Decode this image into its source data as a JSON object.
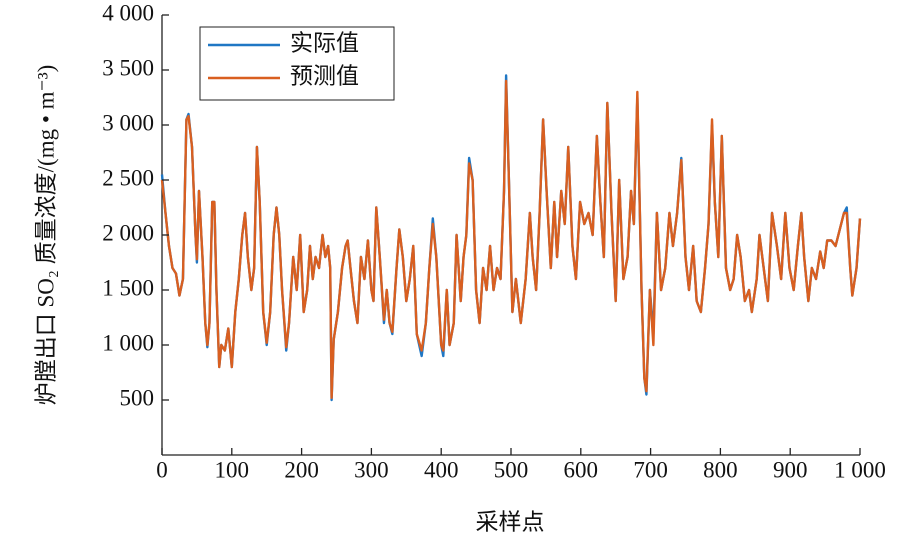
{
  "chart_data": {
    "type": "line",
    "x_label": "采样点",
    "y_label": "炉膛出口 SO₂ 质量浓度/(mg • m⁻³)",
    "x": [
      0,
      5,
      10,
      15,
      20,
      25,
      30,
      35,
      38,
      43,
      48,
      50,
      53,
      58,
      62,
      65,
      68,
      72,
      75,
      78,
      82,
      85,
      90,
      95,
      100,
      105,
      110,
      115,
      119,
      123,
      128,
      132,
      136,
      140,
      145,
      150,
      155,
      160,
      164,
      168,
      172,
      178,
      182,
      188,
      193,
      198,
      203,
      208,
      212,
      216,
      220,
      225,
      230,
      234,
      238,
      241,
      243,
      246,
      252,
      258,
      263,
      266,
      270,
      275,
      280,
      285,
      290,
      295,
      300,
      303,
      307,
      312,
      318,
      322,
      326,
      330,
      336,
      340,
      345,
      350,
      355,
      360,
      365,
      372,
      378,
      383,
      388,
      393,
      400,
      403,
      408,
      412,
      418,
      422,
      428,
      432,
      436,
      440,
      445,
      450,
      455,
      460,
      465,
      470,
      475,
      480,
      485,
      490,
      493,
      497,
      502,
      507,
      514,
      521,
      527,
      531,
      536,
      541,
      546,
      551,
      557,
      562,
      566,
      572,
      577,
      582,
      588,
      593,
      599,
      605,
      611,
      617,
      623,
      628,
      633,
      638,
      644,
      650,
      655,
      661,
      667,
      672,
      676,
      681,
      687,
      691,
      694,
      699,
      704,
      709,
      715,
      721,
      727,
      732,
      738,
      744,
      750,
      755,
      761,
      766,
      772,
      778,
      783,
      788,
      792,
      797,
      802,
      808,
      814,
      819,
      824,
      829,
      835,
      841,
      845,
      852,
      856,
      862,
      868,
      874,
      881,
      887,
      893,
      899,
      905,
      911,
      916,
      920,
      926,
      931,
      937,
      943,
      948,
      953,
      959,
      965,
      971,
      977,
      981,
      986,
      989,
      995,
      1000
    ],
    "series": [
      {
        "name": "实际值",
        "color": "#1f77c4",
        "values": [
          2550,
          2200,
          1900,
          1700,
          1650,
          1450,
          1600,
          3050,
          3100,
          2800,
          2000,
          1750,
          2400,
          1800,
          1200,
          980,
          1200,
          2300,
          2300,
          1500,
          800,
          1000,
          950,
          1150,
          800,
          1300,
          1600,
          2000,
          2200,
          1800,
          1500,
          1700,
          2800,
          2300,
          1300,
          1000,
          1300,
          2000,
          2250,
          2000,
          1500,
          950,
          1200,
          1800,
          1500,
          2000,
          1300,
          1500,
          1900,
          1600,
          1800,
          1700,
          2000,
          1800,
          1900,
          1700,
          500,
          1050,
          1300,
          1700,
          1900,
          1950,
          1700,
          1400,
          1200,
          1800,
          1600,
          1950,
          1500,
          1400,
          2250,
          1800,
          1200,
          1500,
          1200,
          1100,
          1700,
          2050,
          1800,
          1400,
          1600,
          1900,
          1100,
          900,
          1200,
          1700,
          2150,
          1800,
          1000,
          900,
          1500,
          1000,
          1200,
          2000,
          1400,
          1800,
          2000,
          2700,
          2500,
          1500,
          1200,
          1700,
          1500,
          1900,
          1500,
          1700,
          1600,
          2400,
          3450,
          2500,
          1300,
          1600,
          1200,
          1600,
          2200,
          1800,
          1500,
          2200,
          3050,
          2400,
          1700,
          2300,
          1800,
          2400,
          2100,
          2800,
          1900,
          1600,
          2300,
          2100,
          2200,
          2000,
          2900,
          2300,
          1800,
          3200,
          2200,
          1400,
          2500,
          1600,
          1800,
          2400,
          2100,
          3250,
          1500,
          700,
          550,
          1500,
          1100,
          2200,
          1500,
          1700,
          2200,
          1900,
          2200,
          2700,
          1800,
          1500,
          1900,
          1400,
          1300,
          1700,
          2100,
          3000,
          2300,
          1800,
          2900,
          1700,
          1500,
          1600,
          2000,
          1800,
          1400,
          1500,
          1300,
          1600,
          2000,
          1700,
          1400,
          2200,
          1900,
          1600,
          2200,
          1700,
          1500,
          1900,
          2200,
          1800,
          1400,
          1700,
          1600,
          1850,
          1700,
          1950,
          1950,
          1900,
          2050,
          2200,
          2250,
          1700,
          1450,
          1700,
          2150
        ]
      },
      {
        "name": "预测值",
        "color": "#d95f20",
        "values": [
          2500,
          2200,
          1900,
          1700,
          1650,
          1450,
          1600,
          3050,
          3080,
          2800,
          2000,
          1780,
          2400,
          1800,
          1200,
          1000,
          1200,
          2300,
          2300,
          1500,
          800,
          1000,
          950,
          1150,
          800,
          1300,
          1600,
          2000,
          2200,
          1800,
          1500,
          1700,
          2800,
          2300,
          1300,
          1020,
          1300,
          2000,
          2250,
          2000,
          1500,
          980,
          1200,
          1800,
          1500,
          2000,
          1300,
          1500,
          1900,
          1600,
          1800,
          1700,
          2000,
          1800,
          1900,
          1700,
          520,
          1050,
          1300,
          1700,
          1900,
          1950,
          1700,
          1400,
          1200,
          1800,
          1600,
          1950,
          1500,
          1400,
          2250,
          1800,
          1230,
          1500,
          1200,
          1120,
          1700,
          2050,
          1800,
          1400,
          1600,
          1900,
          1100,
          950,
          1200,
          1700,
          2100,
          1800,
          1000,
          950,
          1500,
          1000,
          1200,
          2000,
          1400,
          1800,
          2000,
          2650,
          2500,
          1500,
          1200,
          1700,
          1500,
          1900,
          1500,
          1700,
          1600,
          2400,
          3400,
          2500,
          1300,
          1600,
          1200,
          1600,
          2200,
          1800,
          1500,
          2200,
          3050,
          2400,
          1700,
          2300,
          1800,
          2400,
          2100,
          2800,
          1900,
          1600,
          2300,
          2100,
          2200,
          2000,
          2900,
          2300,
          1800,
          3200,
          2200,
          1400,
          2500,
          1600,
          1800,
          2400,
          2100,
          3300,
          1500,
          700,
          580,
          1500,
          1000,
          2200,
          1500,
          1700,
          2200,
          1900,
          2200,
          2680,
          1800,
          1500,
          1900,
          1400,
          1300,
          1700,
          2100,
          3050,
          2300,
          1800,
          2900,
          1700,
          1500,
          1600,
          2000,
          1800,
          1400,
          1500,
          1300,
          1600,
          2000,
          1700,
          1400,
          2200,
          1900,
          1600,
          2200,
          1700,
          1500,
          1900,
          2200,
          1800,
          1400,
          1700,
          1600,
          1850,
          1700,
          1950,
          1950,
          1900,
          2050,
          2200,
          2200,
          1700,
          1450,
          1700,
          2150
        ]
      }
    ],
    "xlim": [
      0,
      1000
    ],
    "ylim": [
      0,
      4000
    ],
    "xticks": [
      0,
      100,
      200,
      300,
      400,
      500,
      600,
      700,
      800,
      900,
      {
        "value": 1000,
        "label": "1 000"
      }
    ],
    "yticks": [
      500,
      {
        "value": 1000,
        "label": "1 000"
      },
      {
        "value": 1500,
        "label": "1 500"
      },
      {
        "value": 2000,
        "label": "2 000"
      },
      {
        "value": 2500,
        "label": "2 500"
      },
      {
        "value": 3000,
        "label": "3 000"
      },
      {
        "value": 3500,
        "label": "3 500"
      },
      {
        "value": 4000,
        "label": "4 000"
      }
    ],
    "legend": "upper left"
  }
}
